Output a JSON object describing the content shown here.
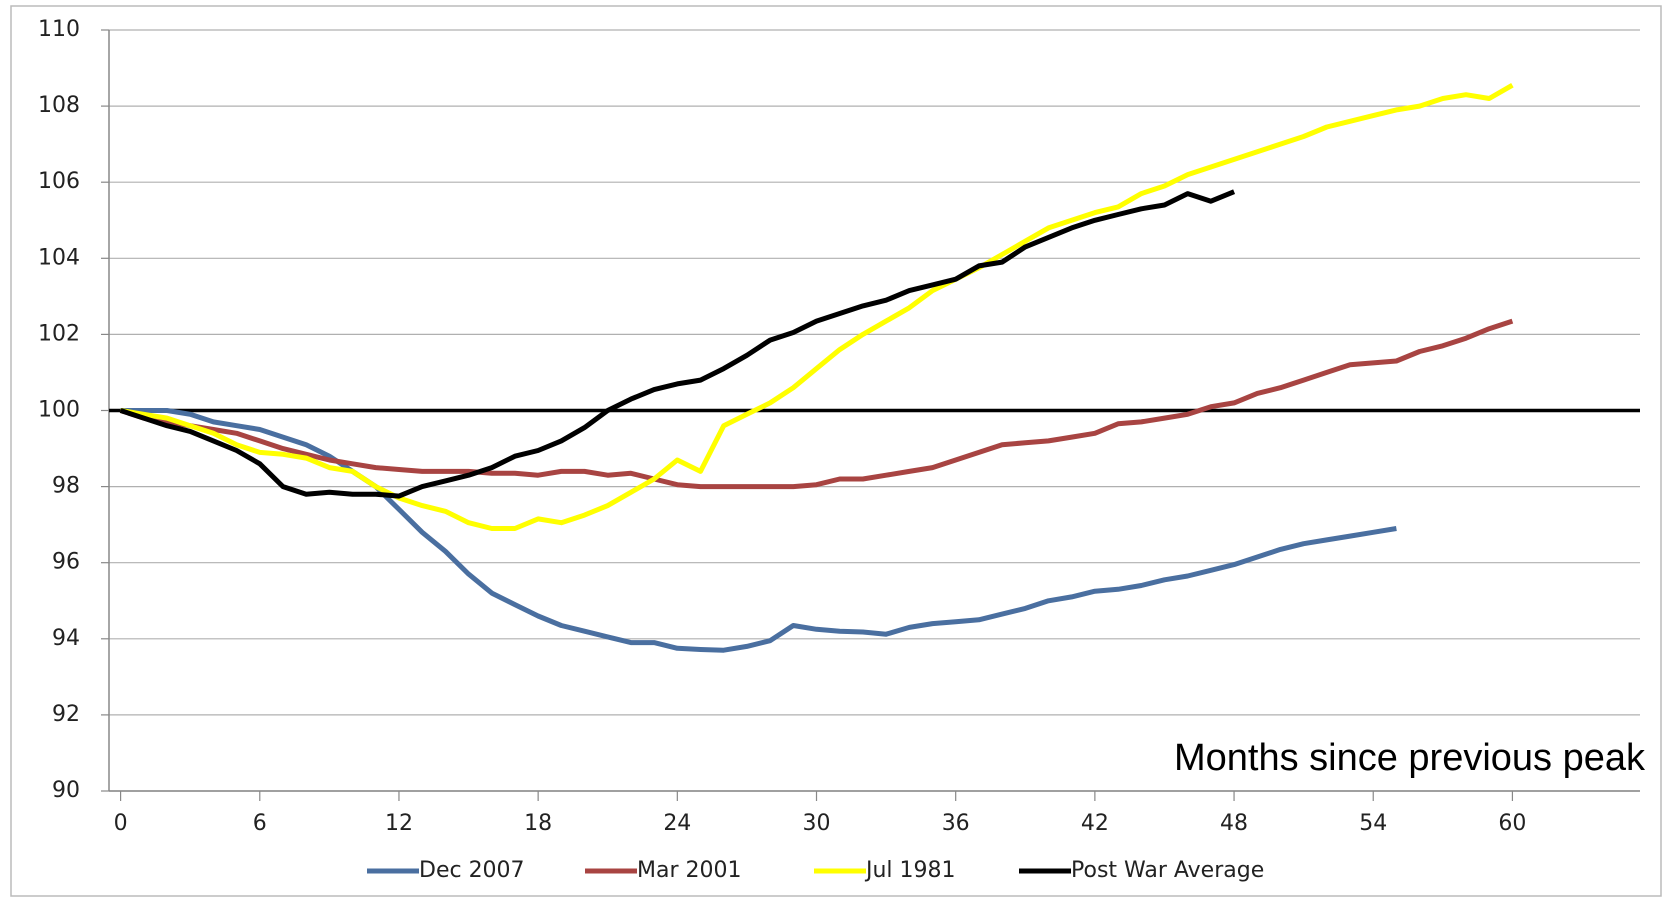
{
  "chart_data": {
    "type": "line",
    "x_label": "Months since previous peak",
    "x": [
      0,
      1,
      2,
      3,
      4,
      5,
      6,
      7,
      8,
      9,
      10,
      11,
      12,
      13,
      14,
      15,
      16,
      17,
      18,
      19,
      20,
      21,
      22,
      23,
      24,
      25,
      26,
      27,
      28,
      29,
      30,
      31,
      32,
      33,
      34,
      35,
      36,
      37,
      38,
      39,
      40,
      41,
      42,
      43,
      44,
      45,
      46,
      47,
      48,
      49,
      50,
      51,
      52,
      53,
      54,
      55,
      56,
      57,
      58,
      59,
      60
    ],
    "xlim": [
      -0.5,
      65.5
    ],
    "xticks": [
      0,
      6,
      12,
      18,
      24,
      30,
      36,
      42,
      48,
      54,
      60
    ],
    "ylim": [
      90,
      110
    ],
    "yticks": [
      90,
      92,
      94,
      96,
      98,
      100,
      102,
      104,
      106,
      108,
      110
    ],
    "grid": true,
    "reference_line": 100,
    "legend": "bottom",
    "series": [
      {
        "name": "Dec 2007",
        "color": "#4a6fa0",
        "values": [
          100,
          100,
          100,
          99.9,
          99.7,
          99.6,
          99.5,
          99.3,
          99.1,
          98.8,
          98.4,
          98.0,
          97.4,
          96.8,
          96.3,
          95.7,
          95.2,
          94.9,
          94.6,
          94.35,
          94.2,
          94.05,
          93.9,
          93.9,
          93.75,
          93.72,
          93.7,
          93.8,
          93.95,
          94.35,
          94.25,
          94.2,
          94.18,
          94.12,
          94.3,
          94.4,
          94.45,
          94.5,
          94.65,
          94.8,
          95.0,
          95.1,
          95.25,
          95.3,
          95.4,
          95.55,
          95.65,
          95.8,
          95.95,
          96.15,
          96.35,
          96.5,
          96.6,
          96.7,
          96.8,
          96.9,
          null,
          null,
          null,
          null,
          null
        ]
      },
      {
        "name": "Mar 2001",
        "color": "#a84442",
        "values": [
          100,
          99.8,
          99.7,
          99.6,
          99.5,
          99.4,
          99.2,
          99.0,
          98.85,
          98.7,
          98.6,
          98.5,
          98.45,
          98.4,
          98.4,
          98.4,
          98.35,
          98.35,
          98.3,
          98.4,
          98.4,
          98.3,
          98.35,
          98.2,
          98.05,
          98.0,
          98.0,
          98.0,
          98.0,
          98.0,
          98.05,
          98.2,
          98.2,
          98.3,
          98.4,
          98.5,
          98.7,
          98.9,
          99.1,
          99.15,
          99.2,
          99.3,
          99.4,
          99.65,
          99.7,
          99.8,
          99.9,
          100.1,
          100.2,
          100.45,
          100.6,
          100.8,
          101.0,
          101.2,
          101.25,
          101.3,
          101.55,
          101.7,
          101.9,
          102.15,
          102.35
        ]
      },
      {
        "name": "Jul 1981",
        "color": "#ffff00",
        "values": [
          100,
          99.9,
          99.8,
          99.6,
          99.4,
          99.1,
          98.9,
          98.85,
          98.75,
          98.5,
          98.4,
          98.0,
          97.7,
          97.5,
          97.35,
          97.05,
          96.9,
          96.9,
          97.15,
          97.05,
          97.25,
          97.5,
          97.85,
          98.2,
          98.7,
          98.4,
          99.6,
          99.9,
          100.2,
          100.6,
          101.1,
          101.6,
          102.0,
          102.35,
          102.7,
          103.15,
          103.45,
          103.75,
          104.1,
          104.45,
          104.8,
          105.0,
          105.2,
          105.35,
          105.7,
          105.9,
          106.2,
          106.4,
          106.6,
          106.8,
          107.0,
          107.2,
          107.45,
          107.6,
          107.75,
          107.9,
          108.0,
          108.2,
          108.3,
          108.2,
          108.55
        ]
      },
      {
        "name": "Post War Average",
        "color": "#000000",
        "values": [
          100,
          99.8,
          99.6,
          99.45,
          99.2,
          98.95,
          98.6,
          98.0,
          97.8,
          97.85,
          97.8,
          97.8,
          97.75,
          98.0,
          98.15,
          98.3,
          98.5,
          98.8,
          98.95,
          99.2,
          99.55,
          100.0,
          100.3,
          100.55,
          100.7,
          100.8,
          101.1,
          101.45,
          101.85,
          102.05,
          102.35,
          102.55,
          102.75,
          102.9,
          103.15,
          103.3,
          103.45,
          103.8,
          103.9,
          104.3,
          104.55,
          104.8,
          105.0,
          105.15,
          105.3,
          105.4,
          105.7,
          105.5,
          105.75,
          null,
          null,
          null,
          null,
          null,
          null,
          null,
          null,
          null,
          null,
          null,
          null
        ]
      }
    ]
  }
}
